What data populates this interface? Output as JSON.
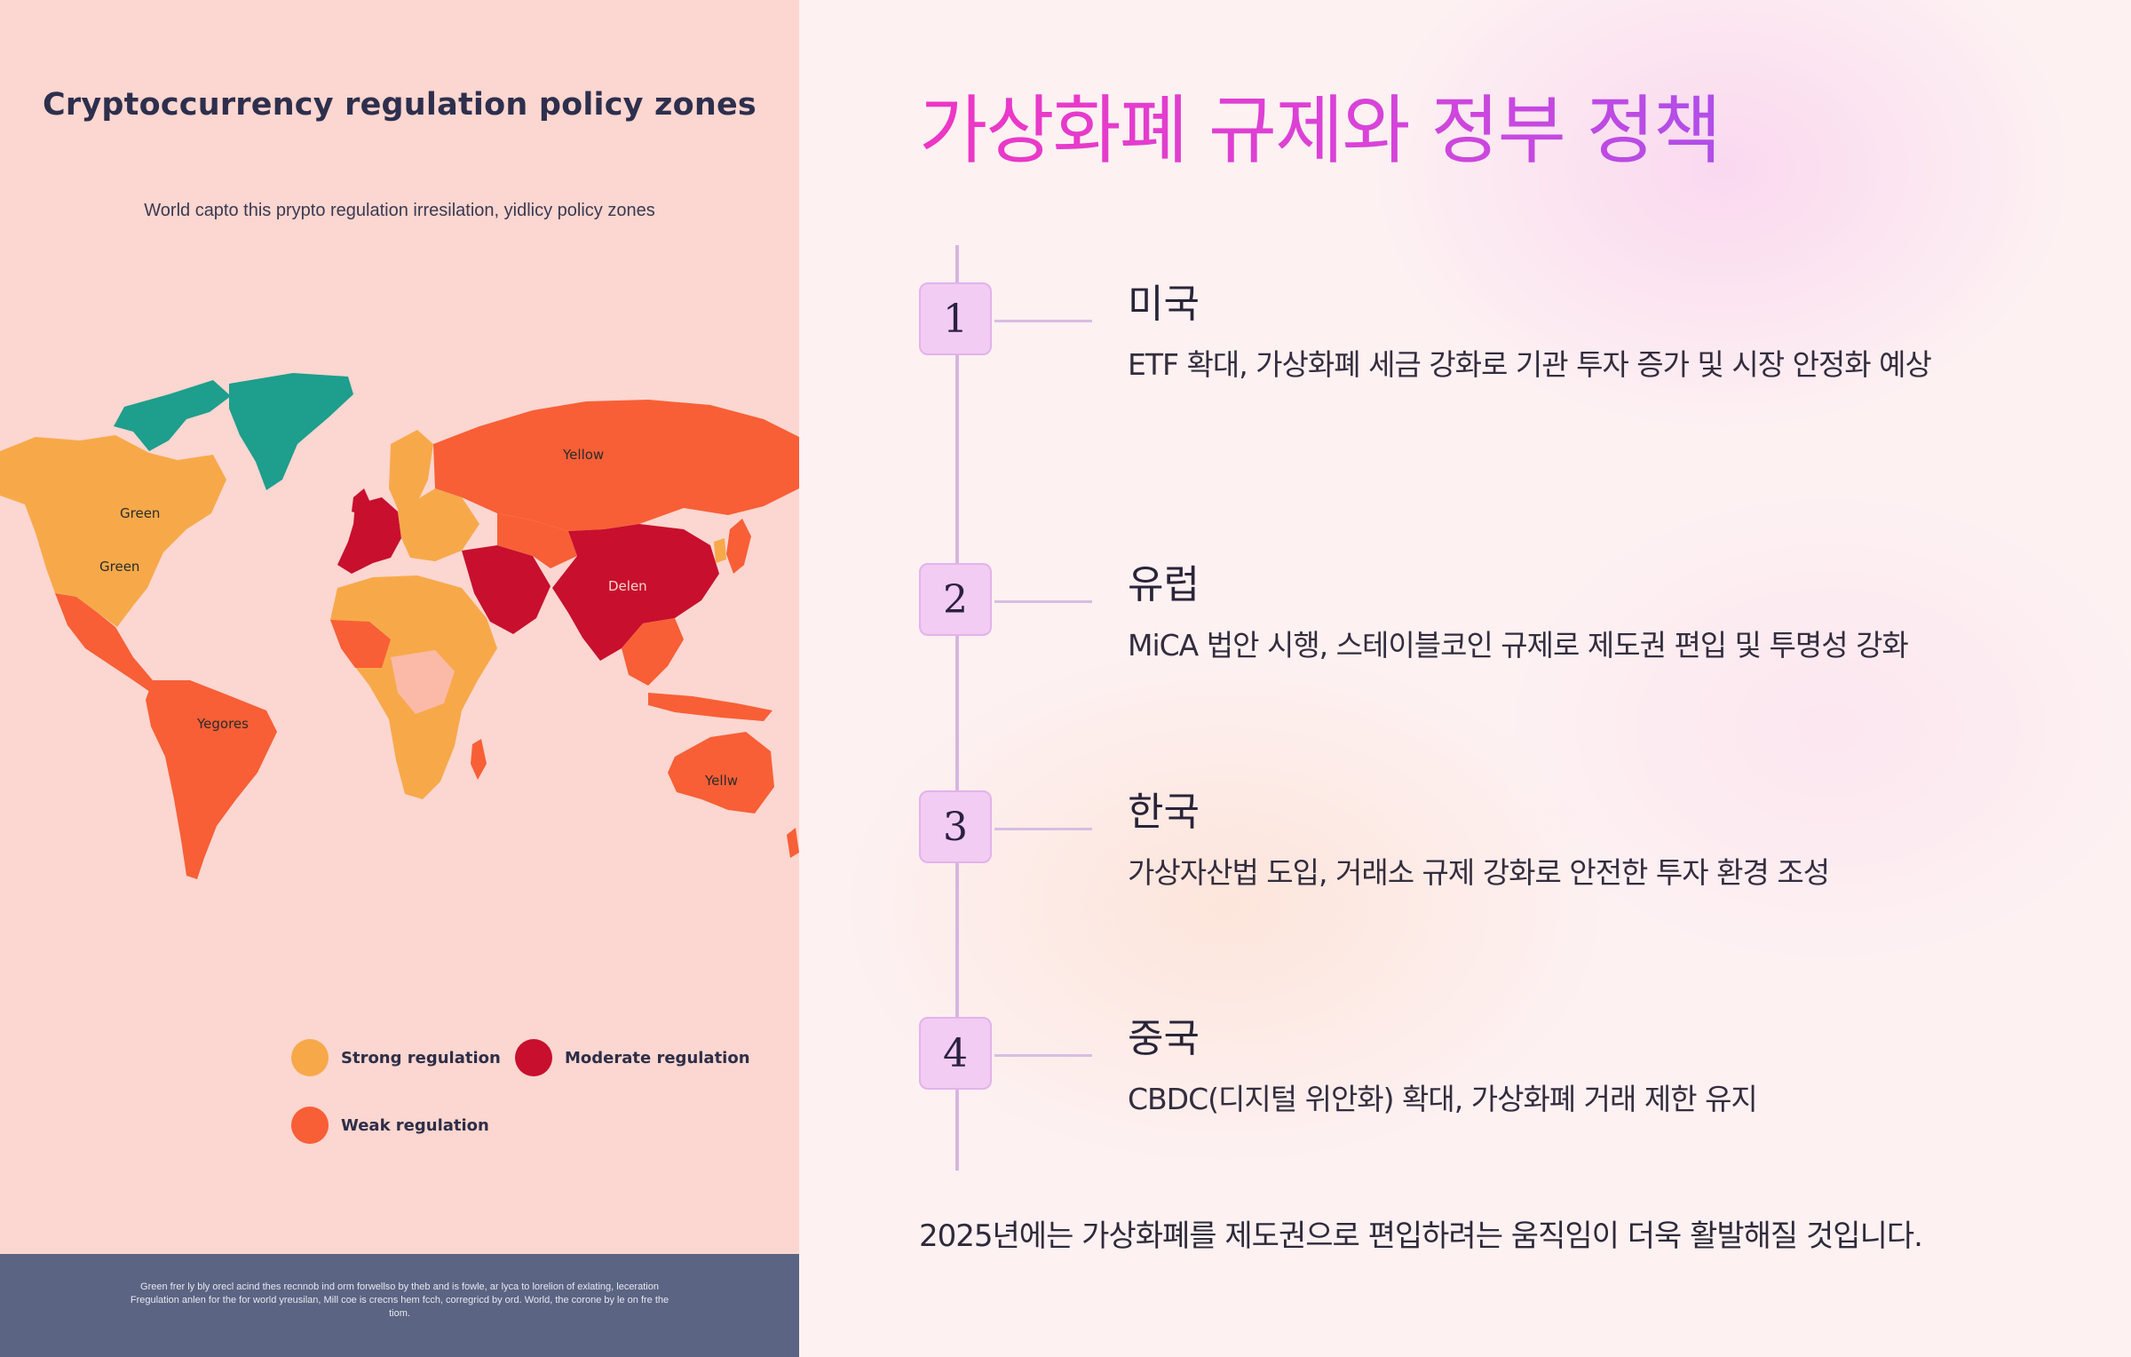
{
  "poster": {
    "title": "Cryptoccurrency regulation policy zones",
    "subtitle": "World capto this prypto regulation irresilation, yidlicy policy zones",
    "map_labels": {
      "north_america_top": "Green",
      "north_america_bottom": "Green",
      "russia": "Yellow",
      "china": "Delen",
      "south_america": "Yegores",
      "australia": "Yellw"
    },
    "legend": [
      {
        "label": "Strong regulation",
        "color": "#f7a94a"
      },
      {
        "label": "Moderate regulation",
        "color": "#c80f2e"
      },
      {
        "label": "Weak regulation",
        "color": "#f85f36"
      }
    ],
    "footer_text": "Green frer ly bly orecl acind thes recnnob ind orm forwellso by theb and is fowle, ar lyca to lorelion of exlating, leceration Fregulation anlen for the for world yreusilan, Mill coe is crecns hem fcch, corregricd by ord. World, the corone by le on fre the tiom."
  },
  "slide": {
    "title": "가상화폐 규제와 정부 정책",
    "steps": [
      {
        "number": "1",
        "heading": "미국",
        "description": "ETF 확대, 가상화폐 세금 강화로 기관 투자 증가 및 시장 안정화 예상"
      },
      {
        "number": "2",
        "heading": "유럽",
        "description": "MiCA 법안 시행, 스테이블코인 규제로 제도권 편입 및 투명성 강화"
      },
      {
        "number": "3",
        "heading": "한국",
        "description": "가상자산법 도입, 거래소 규제 강화로 안전한 투자 환경 조성"
      },
      {
        "number": "4",
        "heading": "중국",
        "description": "CBDC(디지털 위안화) 확대, 가상화폐 거래 제한 유지"
      }
    ],
    "summary": "2025년에는 가상화폐를 제도권으로 편입하려는 움직임이 더욱 활발해질 것입니다."
  },
  "colors": {
    "poster_background": "#fcd6d0",
    "footer_band": "#5b6482",
    "strong": "#f7a94a",
    "moderate": "#c80f2e",
    "weak": "#f85f36",
    "teal": "#1e9e8c",
    "title_gradient_start": "#ee36c4",
    "title_gradient_end": "#b04ee8",
    "badge": "#f2ccf3"
  }
}
